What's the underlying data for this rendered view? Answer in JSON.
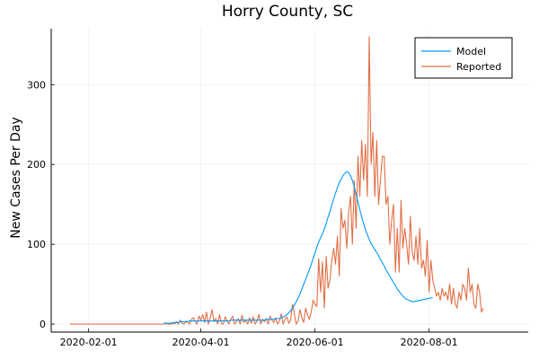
{
  "chart_data": {
    "type": "line",
    "title": "Horry County, SC",
    "xlabel": "",
    "ylabel": "New Cases Per Day",
    "x_start": "2020-01-22",
    "x_end": "2020-09-15",
    "xlim": [
      "2020-01-12",
      "2020-09-23"
    ],
    "ylim": [
      -10,
      370
    ],
    "grid": true,
    "legend_position": "top-right",
    "x_ticks": [
      "2020-02-01",
      "2020-04-01",
      "2020-06-01",
      "2020-08-01"
    ],
    "y_ticks": [
      0,
      100,
      200,
      300
    ],
    "series": [
      {
        "name": "Model",
        "color": "#009AFA",
        "start": "2020-03-12",
        "values": [
          0,
          1,
          1,
          1,
          1,
          2,
          2,
          2,
          2,
          3,
          3,
          3,
          3,
          3,
          4,
          4,
          4,
          4,
          4,
          4,
          4,
          4,
          4,
          4,
          4,
          4,
          4,
          4,
          4,
          4,
          4,
          4,
          4,
          4,
          4,
          4,
          5,
          5,
          5,
          5,
          5,
          5,
          5,
          5,
          5,
          5,
          5,
          5,
          5,
          5,
          5,
          5,
          5,
          5,
          5,
          6,
          6,
          6,
          6,
          6,
          7,
          7,
          7,
          8,
          9,
          10,
          12,
          14,
          17,
          20,
          24,
          28,
          33,
          38,
          44,
          50,
          56,
          62,
          68,
          75,
          82,
          89,
          96,
          103,
          108,
          113,
          119,
          126,
          134,
          141,
          149,
          157,
          164,
          171,
          177,
          182,
          186,
          189,
          191,
          190,
          186,
          180,
          172,
          163,
          153,
          143,
          134,
          126,
          118,
          112,
          106,
          101,
          97,
          93,
          90,
          86,
          81,
          77,
          73,
          68,
          64,
          60,
          56,
          52,
          48,
          44,
          41,
          38,
          35,
          33,
          31,
          30,
          29,
          28,
          28,
          29,
          29,
          30,
          30,
          31,
          31,
          32,
          32,
          33,
          33
        ]
      },
      {
        "name": "Reported",
        "color": "#E26F46",
        "start": "2020-01-22",
        "values": [
          0,
          0,
          0,
          0,
          0,
          0,
          0,
          0,
          0,
          0,
          0,
          0,
          0,
          0,
          0,
          0,
          0,
          0,
          0,
          0,
          0,
          0,
          0,
          0,
          0,
          0,
          0,
          0,
          0,
          0,
          0,
          0,
          0,
          0,
          0,
          0,
          0,
          0,
          0,
          0,
          0,
          0,
          0,
          0,
          0,
          0,
          0,
          0,
          0,
          0,
          0,
          2,
          0,
          0,
          0,
          1,
          0,
          3,
          0,
          5,
          1,
          0,
          4,
          2,
          0,
          6,
          8,
          3,
          0,
          10,
          5,
          12,
          2,
          15,
          0,
          8,
          18,
          3,
          7,
          0,
          12,
          1,
          0,
          9,
          4,
          0,
          6,
          10,
          0,
          3,
          7,
          0,
          11,
          2,
          5,
          0,
          8,
          1,
          9,
          0,
          4,
          12,
          0,
          6,
          3,
          7,
          0,
          10,
          5,
          2,
          8,
          0,
          4,
          13,
          0,
          6,
          9,
          1,
          5,
          25,
          12,
          0,
          4,
          18,
          8,
          2,
          20,
          12,
          6,
          15,
          30,
          25,
          22,
          82,
          40,
          78,
          20,
          85,
          45,
          55,
          80,
          95,
          75,
          110,
          60,
          145,
          120,
          130,
          95,
          140,
          160,
          100,
          180,
          120,
          210,
          160,
          230,
          180,
          225,
          160,
          360,
          200,
          240,
          160,
          230,
          150,
          180,
          210,
          210,
          150,
          160,
          100,
          130,
          150,
          65,
          120,
          65,
          155,
          95,
          120,
          100,
          75,
          135,
          90,
          80,
          110,
          75,
          120,
          70,
          80,
          60,
          105,
          40,
          80,
          55,
          45,
          35,
          40,
          30,
          45,
          35,
          40,
          30,
          50,
          25,
          45,
          25,
          20,
          40,
          30,
          50,
          45,
          30,
          70,
          40,
          50,
          25,
          20,
          50,
          40,
          15,
          20
        ]
      }
    ]
  }
}
